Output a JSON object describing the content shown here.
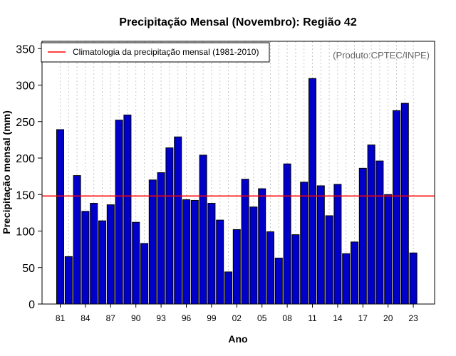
{
  "chart_data": {
    "type": "bar",
    "title": "Precipitação Mensal (Novembro): Região 42",
    "xlabel": "Ano",
    "ylabel": "Precipitação mensal (mm)",
    "ylim": [
      0,
      360
    ],
    "yticks": [
      0,
      50,
      100,
      150,
      200,
      250,
      300,
      350
    ],
    "grid": true,
    "categories": [
      "1981",
      "1982",
      "1983",
      "1984",
      "1985",
      "1986",
      "1987",
      "1988",
      "1989",
      "1990",
      "1991",
      "1992",
      "1993",
      "1994",
      "1995",
      "1996",
      "1997",
      "1998",
      "1999",
      "2000",
      "2001",
      "2002",
      "2003",
      "2004",
      "2005",
      "2006",
      "2007",
      "2008",
      "2009",
      "2010",
      "2011",
      "2012",
      "2013",
      "2014",
      "2015",
      "2016",
      "2017",
      "2018",
      "2019",
      "2020",
      "2021",
      "2022",
      "2023"
    ],
    "xtick_labels": [
      "81",
      "84",
      "87",
      "90",
      "93",
      "96",
      "99",
      "02",
      "05",
      "08",
      "11",
      "14",
      "17",
      "20",
      "23"
    ],
    "xtick_every": 3,
    "series": [
      {
        "name": "Precipitação mensal",
        "color": "#0000c8",
        "values": [
          239,
          65,
          176,
          127,
          138,
          114,
          136,
          252,
          259,
          112,
          83,
          170,
          180,
          214,
          229,
          143,
          142,
          204,
          138,
          115,
          44,
          102,
          171,
          133,
          158,
          99,
          63,
          192,
          95,
          167,
          309,
          162,
          121,
          164,
          69,
          85,
          186,
          218,
          196,
          150,
          265,
          275,
          70
        ]
      }
    ],
    "reference_line": {
      "value": 148,
      "color": "#ff0000"
    },
    "legend": {
      "placement": "top-left",
      "entries": [
        {
          "label": "Climatologia da precipitação mensal (1981-2010)",
          "color": "#ff0000"
        }
      ]
    },
    "annotation": "(Produto:CPTEC/INPE)"
  }
}
